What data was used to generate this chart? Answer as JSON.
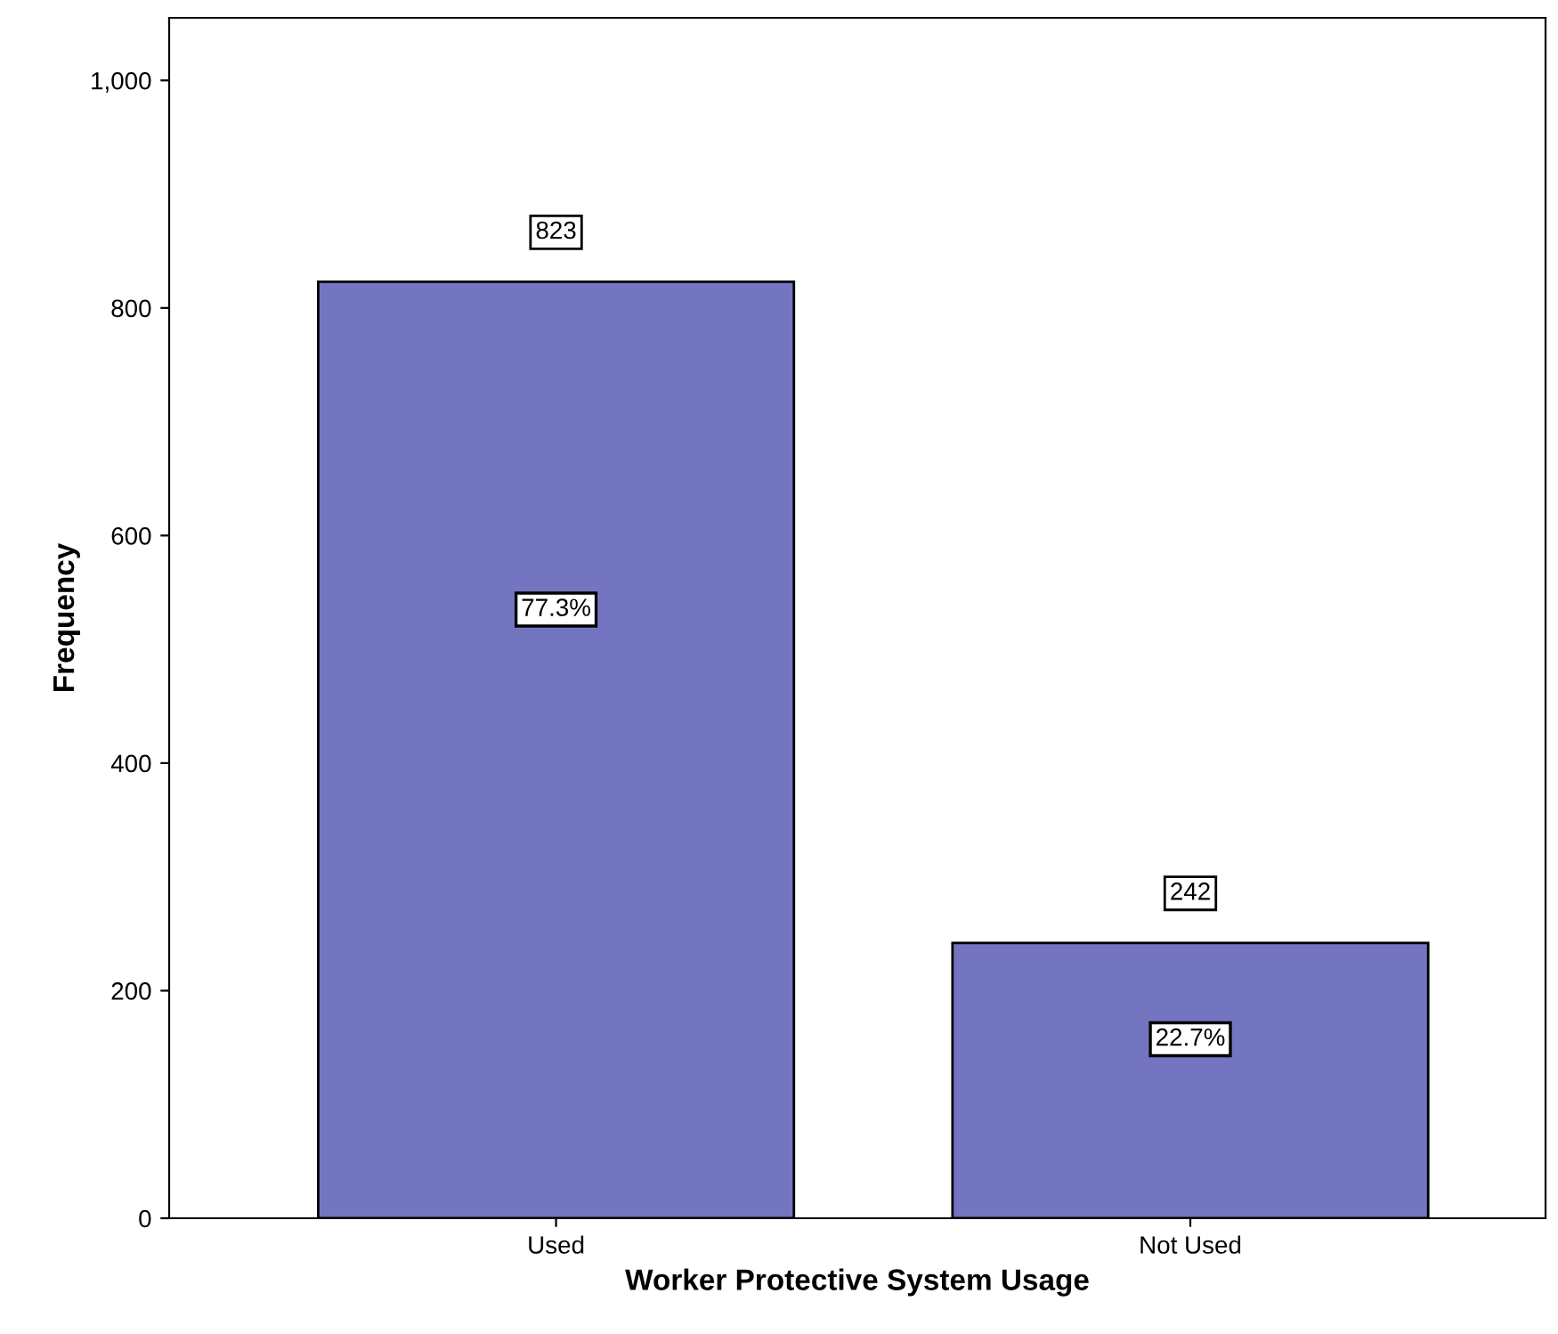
{
  "chart_data": {
    "type": "bar",
    "xlabel": "Worker Protective System Usage",
    "ylabel": "Frequency",
    "categories": [
      "Used",
      "Not Used"
    ],
    "values": [
      823,
      242
    ],
    "color": "#7375c1",
    "ylim": [
      0,
      1055
    ],
    "yticks": [
      0,
      200,
      400,
      600,
      800,
      {
        "value": 1000,
        "label": "1,000"
      }
    ],
    "data_labels": true,
    "grid": false,
    "annotations": [
      "77.3%",
      "22.7%"
    ]
  }
}
